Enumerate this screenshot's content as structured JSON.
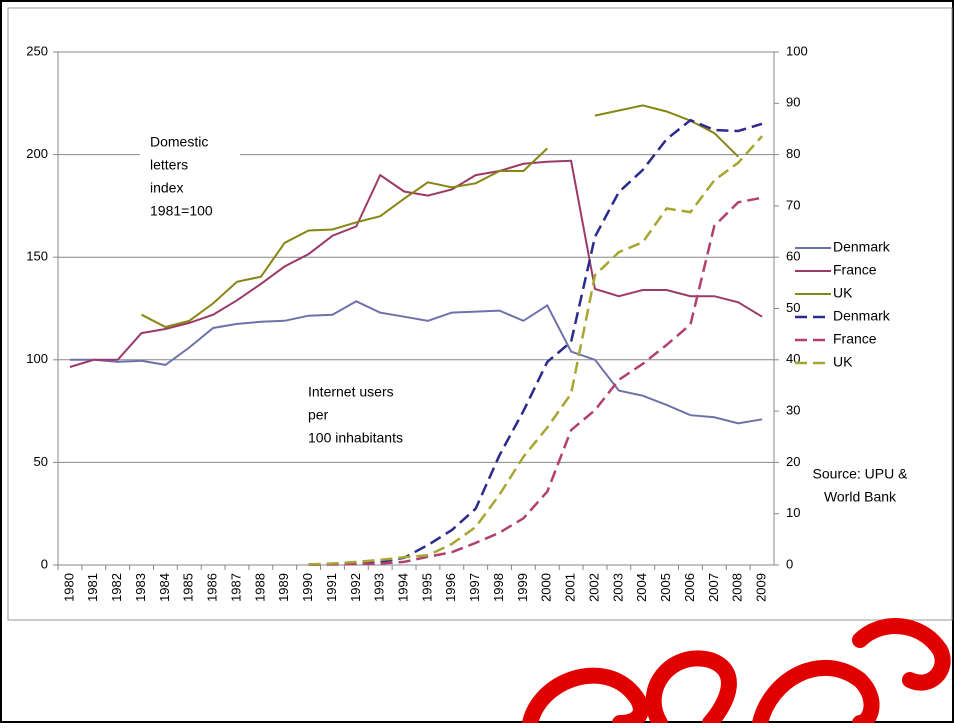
{
  "chart_data": {
    "type": "line",
    "categories": [
      "1980",
      "1981",
      "1982",
      "1983",
      "1984",
      "1985",
      "1986",
      "1987",
      "1988",
      "1989",
      "1990",
      "1991",
      "1992",
      "1993",
      "1994",
      "1995",
      "1996",
      "1997",
      "1998",
      "1999",
      "2000",
      "2001",
      "2002",
      "2003",
      "2004",
      "2005",
      "2006",
      "2007",
      "2008",
      "2009"
    ],
    "ylim": [
      0,
      250
    ],
    "yticks": [
      0,
      50,
      100,
      150,
      200,
      250
    ],
    "y2lim": [
      0,
      100
    ],
    "y2ticks": [
      0,
      10,
      20,
      30,
      40,
      50,
      60,
      70,
      80,
      90,
      100
    ],
    "grid": true,
    "legend": "right",
    "series": [
      {
        "name": "Denmark",
        "color": "#6e72aa",
        "line_style": "solid",
        "axis": "y",
        "values": [
          100,
          100,
          99,
          99.5,
          97.5,
          106,
          115.5,
          117.5,
          118.5,
          119,
          121.5,
          122,
          128.5,
          123,
          121,
          119,
          123,
          123.5,
          124,
          119,
          126.5,
          104,
          100,
          85,
          82.5,
          78,
          73,
          72,
          69,
          71
        ]
      },
      {
        "name": "France",
        "color": "#9b3a68",
        "line_style": "solid",
        "axis": "y",
        "values": [
          96.5,
          100,
          100,
          113,
          115,
          118,
          122,
          129,
          137,
          145.5,
          151.5,
          160.5,
          165,
          190,
          182,
          180,
          183,
          190,
          192,
          195.5,
          196.5,
          197,
          134.5,
          131,
          134,
          134,
          131,
          131,
          128,
          121
        ]
      },
      {
        "name": "UK",
        "color": "#878614",
        "line_style": "solid",
        "axis": "y",
        "values": [
          null,
          null,
          null,
          122,
          116,
          119,
          127.5,
          138,
          140.5,
          157,
          163,
          163.5,
          167,
          170,
          178.5,
          186.5,
          184,
          186,
          192,
          192,
          203,
          null,
          219,
          221.5,
          224,
          221,
          216.5,
          210.5,
          199,
          null
        ]
      },
      {
        "name": "Denmark",
        "color": "#2b2b8c",
        "line_style": "dashed",
        "axis": "y2",
        "values": [
          null,
          null,
          null,
          null,
          null,
          null,
          null,
          null,
          null,
          null,
          0.1,
          0.2,
          0.5,
          0.6,
          1.4,
          3.9,
          6.8,
          11,
          21.4,
          30,
          39.6,
          43.5,
          64,
          72.7,
          77,
          83,
          86.7,
          84.8,
          84.6,
          86
        ]
      },
      {
        "name": "France",
        "color": "#b0406f",
        "line_style": "dashed",
        "axis": "y2",
        "values": [
          null,
          null,
          null,
          null,
          null,
          null,
          null,
          null,
          null,
          null,
          0.05,
          0.1,
          0.2,
          0.3,
          0.6,
          1.6,
          2.5,
          4.3,
          6.3,
          9.1,
          14.3,
          26.3,
          30.2,
          36.1,
          39.2,
          42.9,
          46.9,
          66.1,
          70.7,
          71.6
        ]
      },
      {
        "name": "UK",
        "color": "#a6a631",
        "line_style": "dashed",
        "axis": "y2",
        "values": [
          null,
          null,
          null,
          null,
          null,
          null,
          null,
          null,
          null,
          null,
          0.1,
          0.3,
          0.6,
          1,
          1.5,
          1.9,
          4.1,
          7.4,
          13.7,
          21.1,
          26.8,
          33.4,
          56.5,
          61,
          62.9,
          69.5,
          68.8,
          75,
          78.4,
          83.6
        ]
      }
    ],
    "annotations": [
      {
        "lines": [
          "Domestic",
          "letters",
          "index",
          "1981=100"
        ]
      },
      {
        "lines": [
          "Internet users",
          "per",
          "100 inhabitants"
        ]
      },
      {
        "lines": [
          "Source: UPU &",
          "World Bank"
        ]
      }
    ]
  }
}
